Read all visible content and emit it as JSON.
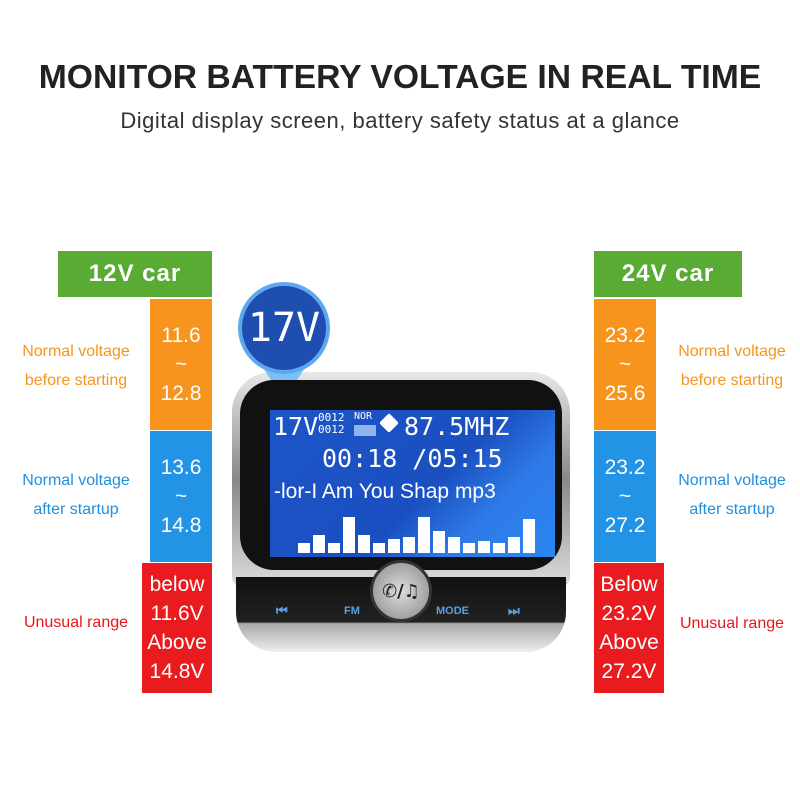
{
  "title": "MONITOR BATTERY VOLTAGE IN REAL TIME",
  "subtitle": "Digital display screen, battery safety status at a glance",
  "left": {
    "header": "12V car",
    "normal_before": {
      "label": [
        "Normal voltage",
        "before starting"
      ],
      "range": [
        "11.6",
        "~",
        "12.8"
      ]
    },
    "normal_after": {
      "label": [
        "Normal voltage",
        "after startup"
      ],
      "range": [
        "13.6",
        "~",
        "14.8"
      ]
    },
    "unusual": {
      "label": "Unusual range",
      "range": [
        "below",
        "11.6V",
        "Above",
        "14.8V"
      ]
    }
  },
  "right": {
    "header": "24V car",
    "normal_before": {
      "label": [
        "Normal voltage",
        "before starting"
      ],
      "range": [
        "23.2",
        "~",
        "25.6"
      ]
    },
    "normal_after": {
      "label": [
        "Normal voltage",
        "after startup"
      ],
      "range": [
        "23.2",
        "~",
        "27.2"
      ]
    },
    "unusual": {
      "label": "Unusual range",
      "range": [
        "Below",
        "23.2V",
        "Above",
        "27.2V"
      ]
    }
  },
  "device": {
    "bubble": "17V",
    "voltage": "17V",
    "counter": [
      "0012",
      "0012"
    ],
    "eq_mode": "NOR",
    "frequency": "87.5MHZ",
    "time": "00:18 /05:15",
    "track": "-lor-I Am You Shap mp3",
    "buttons": {
      "prev": "⏮",
      "fm": "FM",
      "center": "✆/♫",
      "mode": "MODE",
      "next": "⏭"
    }
  },
  "colors": {
    "green": "#5aab34",
    "orange": "#f7941d",
    "blue": "#2393e6",
    "red": "#ea1b1f"
  }
}
